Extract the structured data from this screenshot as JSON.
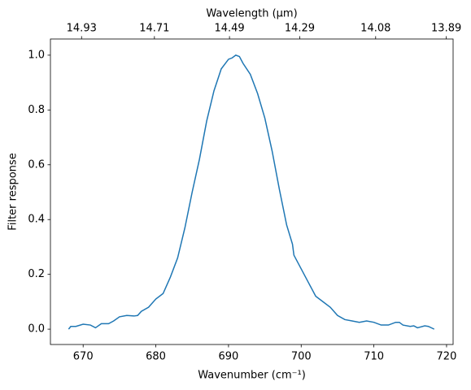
{
  "chart_data": {
    "type": "line",
    "xlabel": "Wavenumber (cm⁻¹)",
    "ylabel": "Filter response",
    "x2label": "Wavelength (μm)",
    "x": [
      668,
      668.3,
      669,
      670,
      671,
      671.7,
      672.5,
      673.5,
      674.2,
      675,
      676,
      677,
      677.5,
      678,
      679,
      680,
      681,
      682,
      683,
      684,
      685,
      686,
      687,
      688,
      688.5,
      689,
      690,
      690.5,
      691,
      691.5,
      692,
      693,
      694,
      695,
      696,
      697,
      698,
      698.8,
      699,
      700,
      701,
      702,
      703,
      704,
      705,
      706,
      707,
      708,
      709,
      710,
      711,
      712,
      713,
      713.5,
      714,
      715,
      715.5,
      716,
      717,
      717.5,
      718.3
    ],
    "series": [
      {
        "name": "Filter response",
        "color": "#1f77b4",
        "values": [
          0.0,
          0.01,
          0.01,
          0.018,
          0.015,
          0.005,
          0.02,
          0.02,
          0.03,
          0.045,
          0.05,
          0.048,
          0.05,
          0.065,
          0.08,
          0.11,
          0.13,
          0.19,
          0.26,
          0.37,
          0.5,
          0.62,
          0.76,
          0.87,
          0.91,
          0.95,
          0.985,
          0.99,
          1.0,
          0.995,
          0.97,
          0.93,
          0.86,
          0.77,
          0.65,
          0.51,
          0.38,
          0.31,
          0.27,
          0.22,
          0.17,
          0.12,
          0.1,
          0.08,
          0.05,
          0.035,
          0.03,
          0.025,
          0.03,
          0.025,
          0.015,
          0.015,
          0.025,
          0.025,
          0.015,
          0.01,
          0.012,
          0.005,
          0.012,
          0.01,
          0.0
        ]
      }
    ],
    "xlim": [
      665.5,
      720.9
    ],
    "xticks": [
      670,
      680,
      690,
      700,
      710,
      720
    ],
    "ylim": [
      -0.056,
      1.059
    ],
    "yticks": [
      {
        "value": 0,
        "label": "0.0"
      },
      {
        "value": 0.2,
        "label": "0.2"
      },
      {
        "value": 0.4,
        "label": "0.4"
      },
      {
        "value": 0.6,
        "label": "0.6"
      },
      {
        "value": 0.8,
        "label": "0.8"
      },
      {
        "value": 1,
        "label": "1.0"
      }
    ],
    "x2scale": "reciprocal",
    "x2lim": [
      15.026,
      13.872
    ],
    "x2ticks": [
      14.93,
      14.71,
      14.49,
      14.29,
      14.08,
      13.89
    ],
    "grid": false
  }
}
